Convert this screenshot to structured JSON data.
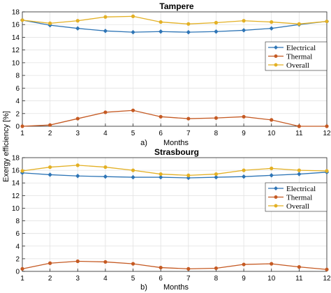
{
  "figure": {
    "ylabel": "Exergy efficiency [%]"
  },
  "colors": {
    "Electrical": "#2e75b6",
    "Thermal": "#c55a23",
    "Overall": "#e3b024"
  },
  "chart_data": [
    {
      "type": "line",
      "title": "Tampere",
      "panel_label": "a)",
      "xlabel": "Months",
      "ylabel": "Exergy efficiency [%]",
      "x": [
        1,
        2,
        3,
        4,
        5,
        6,
        7,
        8,
        9,
        10,
        11,
        12
      ],
      "xticks": [
        "1",
        "2",
        "3",
        "4",
        "5",
        "6",
        "7",
        "8",
        "9",
        "10",
        "11",
        "12"
      ],
      "xlim": [
        1,
        12
      ],
      "ylim": [
        0,
        18
      ],
      "yticks": [
        "0",
        "2",
        "4",
        "6",
        "8",
        "10",
        "12",
        "14",
        "16",
        "18"
      ],
      "grid": true,
      "legend_position": "center-right",
      "series": [
        {
          "name": "Electrical",
          "marker": "diamond",
          "values": [
            16.7,
            15.9,
            15.4,
            15.0,
            14.8,
            14.9,
            14.8,
            14.9,
            15.1,
            15.4,
            16.0,
            16.5
          ]
        },
        {
          "name": "Thermal",
          "marker": "circle",
          "values": [
            0.0,
            0.2,
            1.2,
            2.2,
            2.5,
            1.5,
            1.2,
            1.3,
            1.5,
            1.0,
            0.0,
            0.0
          ]
        },
        {
          "name": "Overall",
          "marker": "circle",
          "values": [
            16.7,
            16.2,
            16.6,
            17.2,
            17.3,
            16.4,
            16.1,
            16.3,
            16.6,
            16.4,
            16.1,
            16.5
          ]
        }
      ]
    },
    {
      "type": "line",
      "title": "Strasbourg",
      "panel_label": "b)",
      "xlabel": "Months",
      "ylabel": "Exergy efficiency [%]",
      "x": [
        1,
        2,
        3,
        4,
        5,
        6,
        7,
        8,
        9,
        10,
        11,
        12
      ],
      "xticks": [
        "1",
        "2",
        "3",
        "4",
        "5",
        "6",
        "7",
        "8",
        "9",
        "10",
        "11",
        "12"
      ],
      "xlim": [
        1,
        12
      ],
      "ylim": [
        0,
        18
      ],
      "yticks": [
        "0",
        "2",
        "4",
        "6",
        "8",
        "10",
        "12",
        "14",
        "16",
        "18"
      ],
      "grid": true,
      "legend_position": "center-right",
      "series": [
        {
          "name": "Electrical",
          "marker": "diamond",
          "values": [
            15.6,
            15.3,
            15.1,
            15.0,
            14.9,
            14.9,
            14.8,
            14.9,
            15.0,
            15.2,
            15.4,
            15.7
          ]
        },
        {
          "name": "Thermal",
          "marker": "circle",
          "values": [
            0.4,
            1.3,
            1.6,
            1.5,
            1.2,
            0.6,
            0.4,
            0.5,
            1.1,
            1.2,
            0.7,
            0.3
          ]
        },
        {
          "name": "Overall",
          "marker": "circle",
          "values": [
            15.9,
            16.5,
            16.8,
            16.5,
            16.0,
            15.4,
            15.2,
            15.4,
            16.0,
            16.3,
            16.0,
            15.9
          ]
        }
      ]
    }
  ]
}
